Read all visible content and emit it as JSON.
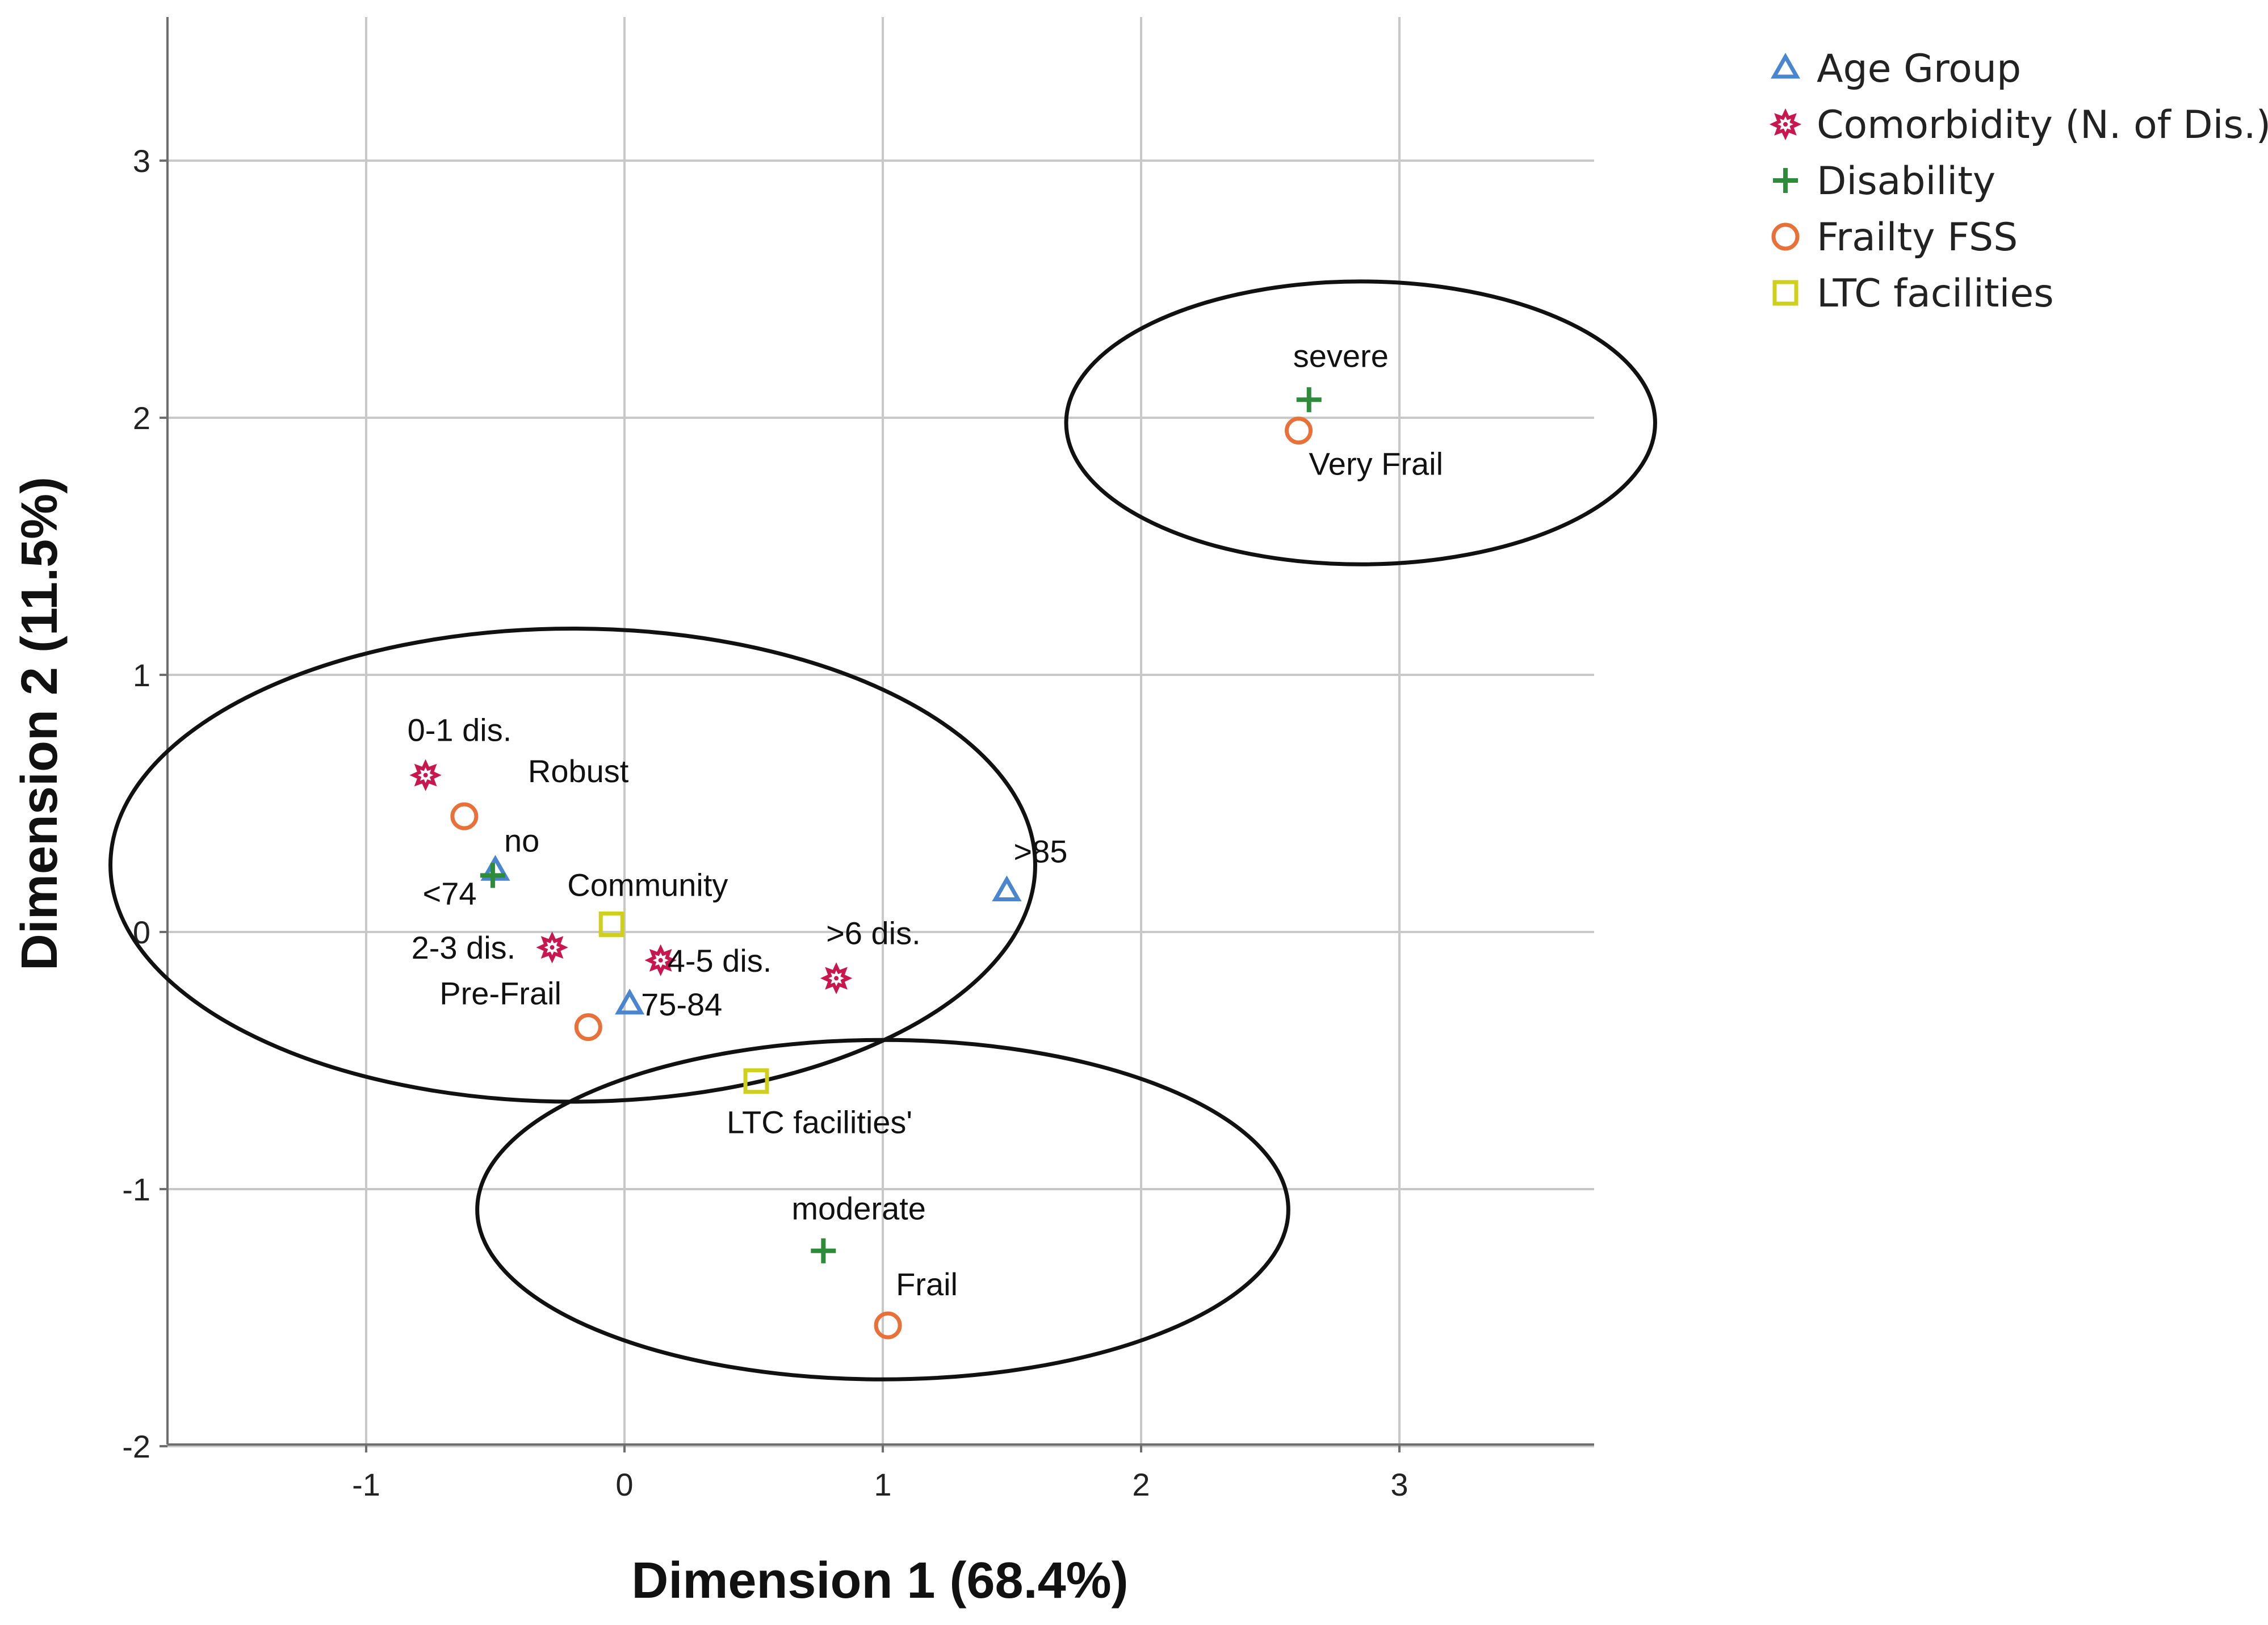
{
  "chart_data": {
    "type": "scatter",
    "title": "",
    "xlabel": "Dimension 1 (68.4%)",
    "ylabel": "Dimension 2 (11.5%)",
    "xlim": [
      -1.75,
      3.78
    ],
    "ylim": [
      -2.0,
      3.5
    ],
    "xticks": [
      -1,
      0,
      1,
      2,
      3
    ],
    "yticks": [
      -2,
      -1,
      0,
      1,
      2,
      3
    ],
    "grid": true,
    "legend_position": "top-right",
    "series": [
      {
        "name": "Age Group",
        "marker": "triangle",
        "color": "#4a86d0",
        "points": [
          {
            "label": "<74",
            "x": -0.5,
            "y": 0.24
          },
          {
            "label": "75-84",
            "x": 0.02,
            "y": -0.28
          },
          {
            "label": ">85",
            "x": 1.48,
            "y": 0.16
          }
        ]
      },
      {
        "name": "Comorbidity (N. of Dis.)",
        "marker": "star",
        "color": "#c8174e",
        "points": [
          {
            "label": "0-1 dis.",
            "x": -0.77,
            "y": 0.61
          },
          {
            "label": "2-3 dis.",
            "x": -0.28,
            "y": -0.06
          },
          {
            "label": "4-5 dis.",
            "x": 0.14,
            "y": -0.11
          },
          {
            "label": ">6 dis.",
            "x": 0.82,
            "y": -0.18
          }
        ]
      },
      {
        "name": "Disability",
        "marker": "plus",
        "color": "#2e8b3a",
        "points": [
          {
            "label": "no",
            "x": -0.51,
            "y": 0.22
          },
          {
            "label": "moderate",
            "x": 0.77,
            "y": -1.24
          },
          {
            "label": "severe",
            "x": 2.65,
            "y": 2.07
          }
        ]
      },
      {
        "name": "Frailty FSS",
        "marker": "circle",
        "color": "#e8713a",
        "points": [
          {
            "label": "Robust",
            "x": -0.62,
            "y": 0.45
          },
          {
            "label": "Pre-Frail",
            "x": -0.14,
            "y": -0.37
          },
          {
            "label": "Frail",
            "x": 1.02,
            "y": -1.53
          },
          {
            "label": "Very Frail",
            "x": 2.61,
            "y": 1.95
          }
        ]
      },
      {
        "name": "LTC facilities",
        "marker": "square",
        "color": "#cfcf1e",
        "points": [
          {
            "label": "Community",
            "x": -0.05,
            "y": 0.03
          },
          {
            "label": "LTC facilities'",
            "x": 0.51,
            "y": -0.58
          }
        ]
      }
    ],
    "annotations": [
      {
        "type": "ellipse",
        "cx": 2.85,
        "cy": 1.98,
        "rx": 1.14,
        "ry": 0.55
      },
      {
        "type": "ellipse",
        "cx": -0.2,
        "cy": 0.26,
        "rx": 1.79,
        "ry": 0.92
      },
      {
        "type": "ellipse",
        "cx": 1.0,
        "cy": -1.08,
        "rx": 1.57,
        "ry": 0.66
      }
    ]
  }
}
